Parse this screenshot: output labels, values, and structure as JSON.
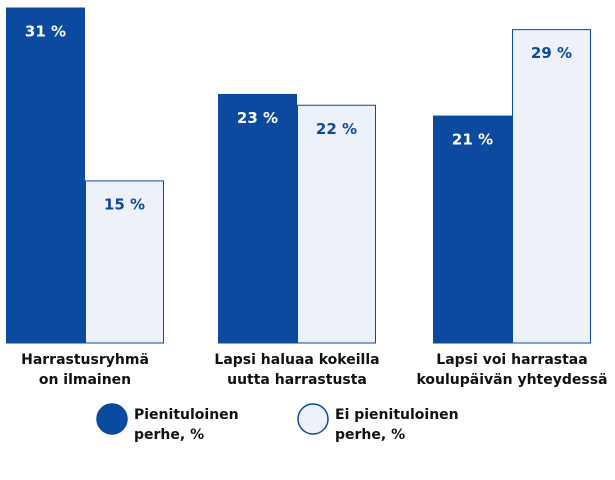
{
  "chart_data": {
    "type": "bar",
    "categories": [
      "Harrastusryhmä\non ilmainen",
      "Lapsi haluaa kokeilla\nuutta harrastusta",
      "Lapsi voi harrastaa\nkoulupäivän yhteydessä"
    ],
    "series": [
      {
        "name": "Pienituloinen\nperhe, %",
        "color": "#0b4a9e",
        "values": [
          31,
          23,
          21
        ],
        "value_labels": [
          "31 %",
          "23 %",
          "21 %"
        ]
      },
      {
        "name": "Ei pienituloinen\nperhe, %",
        "color": "#edf2fa",
        "values": [
          15,
          22,
          29
        ],
        "value_labels": [
          "15 %",
          "22 %",
          "29 %"
        ]
      }
    ]
  }
}
